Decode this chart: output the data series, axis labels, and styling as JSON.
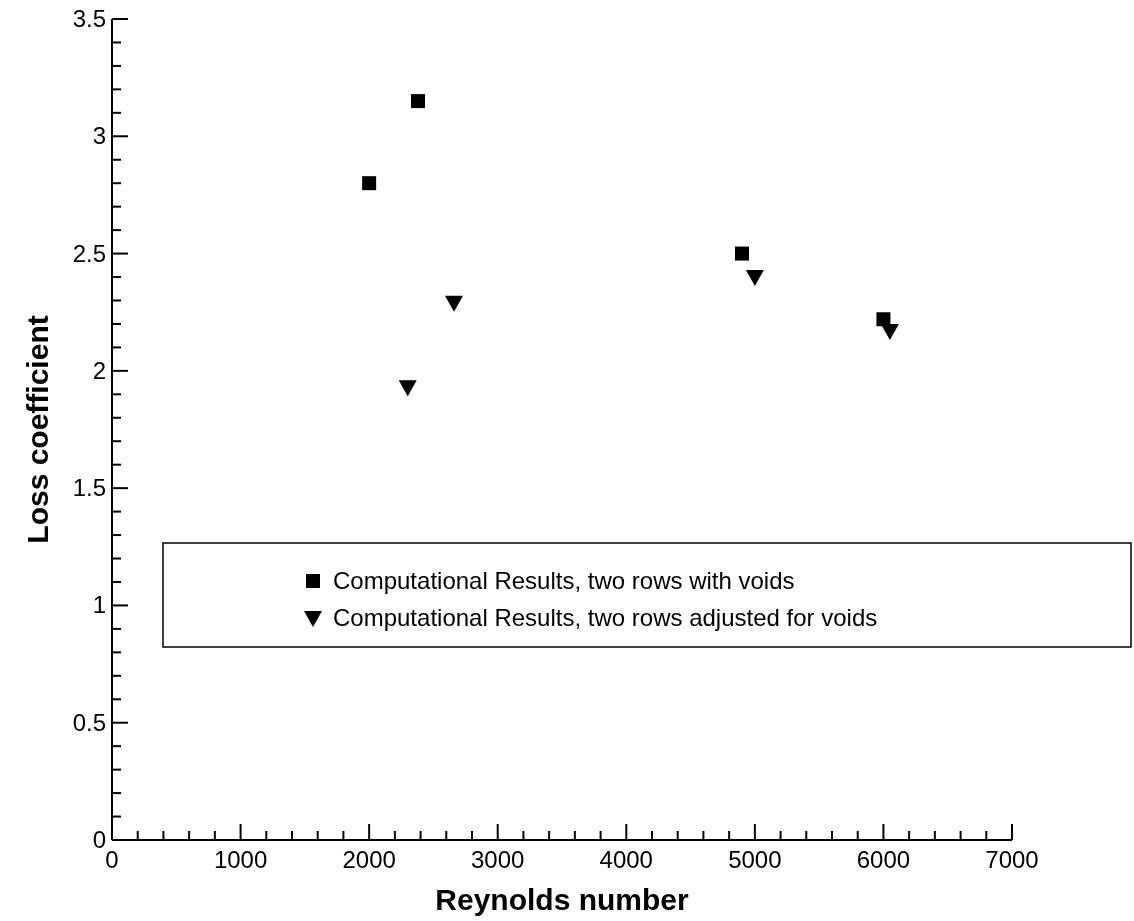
{
  "chart_data": {
    "type": "scatter",
    "xlabel": "Reynolds number",
    "ylabel": "Loss coefficient",
    "xlim": [
      0,
      7000
    ],
    "ylim": [
      0,
      3.5
    ],
    "xticks": [
      0,
      1000,
      2000,
      3000,
      4000,
      5000,
      6000,
      7000
    ],
    "yticks": [
      0,
      0.5,
      1,
      1.5,
      2,
      2.5,
      3,
      3.5
    ],
    "legend": "right",
    "grid": false,
    "series": [
      {
        "name": "Computational Results, two rows with voids",
        "color": "#000000",
        "marker": "square",
        "x": [
          2000,
          2380,
          4900,
          6000
        ],
        "values": [
          2.8,
          3.15,
          2.5,
          2.22
        ]
      },
      {
        "name": "Computational Results, two rows adjusted for voids",
        "color": "#000000",
        "marker": "triangle",
        "x": [
          2300,
          2660,
          5000,
          6050
        ],
        "values": [
          1.93,
          2.29,
          2.4,
          2.17
        ]
      }
    ]
  }
}
